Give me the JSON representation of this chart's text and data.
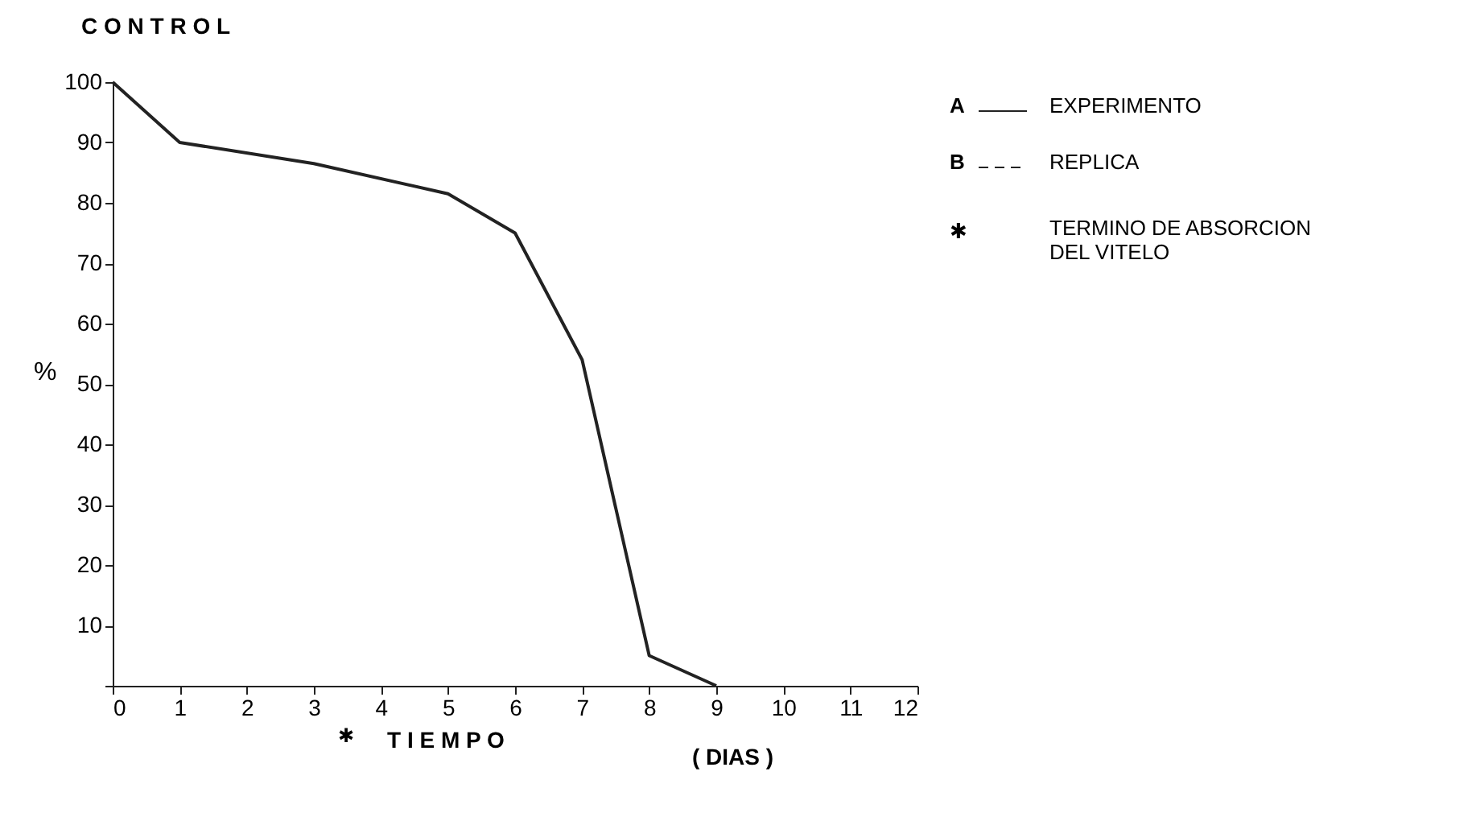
{
  "chart_data": {
    "type": "line",
    "title": "C O N T R O L",
    "xlabel": "T I E M P O",
    "ylabel": "%",
    "x": [
      0,
      1,
      3,
      5,
      6,
      7,
      8,
      9
    ],
    "series": [
      {
        "name": "EXPERIMENTO",
        "color": "#222222",
        "line_style": "solid",
        "values": [
          100,
          90,
          86.5,
          81.5,
          75,
          54,
          5,
          0
        ]
      },
      {
        "name": "REPLICA",
        "color": "#222222",
        "line_style": "dashed",
        "values": [
          null,
          null,
          null,
          null,
          null,
          null,
          null,
          null
        ]
      }
    ],
    "xlim": [
      0,
      12
    ],
    "xticks": [
      0,
      1,
      2,
      3,
      4,
      5,
      6,
      7,
      8,
      9,
      10,
      11,
      12
    ],
    "ylim": [
      0,
      100
    ],
    "yticks": [
      {
        "value": 0,
        "label": null
      },
      10,
      20,
      30,
      40,
      50,
      60,
      70,
      80,
      90,
      100
    ],
    "legend": "right",
    "grid": false,
    "marker": "none",
    "annotations": [
      "A",
      "B",
      "✱",
      "TERMINO DE ABSORCION DEL VITELO",
      "✱",
      "( DIAS )"
    ]
  }
}
